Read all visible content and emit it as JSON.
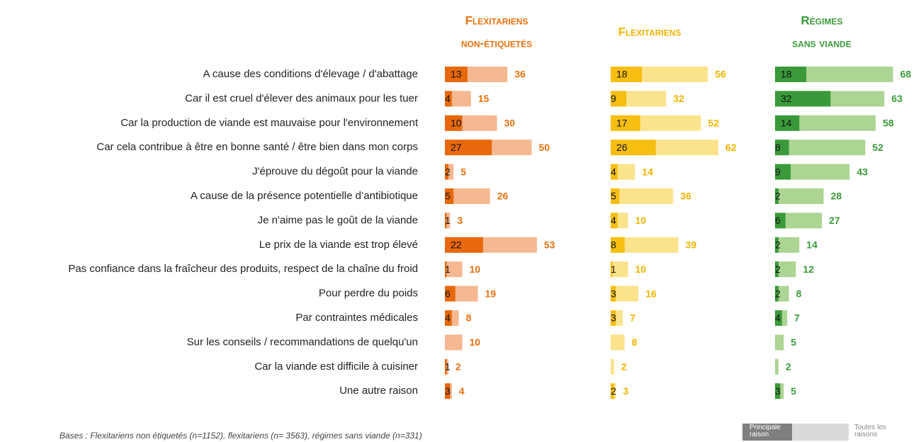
{
  "chart_data": {
    "type": "bar",
    "categories": [
      "A cause des conditions d'élevage / d'abattage",
      "Car il est cruel d'élever des animaux pour les tuer",
      "Car la production de viande est mauvaise pour l'environnement",
      "Car cela contribue à être en bonne santé / être bien dans mon corps",
      "J'éprouve du dégoût pour la viande",
      "A cause de la présence potentielle d’antibiotique",
      "Je n'aime pas le goût de la viande",
      "Le prix de la viande est trop élevé",
      "Pas confiance dans la fraîcheur des produits, respect de la chaîne du froid",
      "Pour perdre du poids",
      "Par contraintes médicales",
      "Sur les conseils / recommandations de quelqu'un",
      "Car la viande est difficile à cuisiner",
      "Une autre raison"
    ],
    "groups": [
      {
        "title": [
          "Flexitariens",
          "non-étiquetés"
        ],
        "label_color": "#e8700e",
        "series": [
          {
            "color": "#e8680c",
            "values": [
              13,
              4,
              10,
              27,
              2,
              5,
              1,
              22,
              1,
              6,
              4,
              null,
              1,
              3
            ]
          },
          {
            "color": "#f5b890",
            "values": [
              36,
              15,
              30,
              50,
              5,
              26,
              3,
              53,
              10,
              19,
              8,
              10,
              2,
              4
            ]
          }
        ]
      },
      {
        "title": [
          "Flexitariens"
        ],
        "label_color": "#f0b400",
        "series": [
          {
            "color": "#f5be10",
            "values": [
              18,
              9,
              17,
              26,
              4,
              5,
              4,
              8,
              1,
              3,
              3,
              null,
              null,
              2
            ]
          },
          {
            "color": "#fbe38c",
            "values": [
              56,
              32,
              52,
              62,
              14,
              36,
              10,
              39,
              10,
              16,
              7,
              8,
              2,
              3
            ]
          }
        ]
      },
      {
        "title": [
          "Régimes",
          "sans viande"
        ],
        "label_color": "#3a9a3a",
        "series": [
          {
            "color": "#3a9a3a",
            "values": [
              18,
              32,
              14,
              8,
              9,
              2,
              6,
              2,
              2,
              2,
              4,
              null,
              null,
              3
            ]
          },
          {
            "color": "#acd493",
            "values": [
              68,
              63,
              58,
              52,
              43,
              28,
              27,
              14,
              12,
              8,
              7,
              5,
              2,
              5
            ]
          }
        ]
      }
    ],
    "legend": [
      {
        "name": "Principale raison",
        "color": "#7f7f7f"
      },
      {
        "name": "Toutes les raisons",
        "color": "#d9d9d9"
      }
    ],
    "note": "Bases : Flexitariens non étiquetés (n=1152), flexitariens (n= 3563), régimes sans viande (n=331)"
  }
}
